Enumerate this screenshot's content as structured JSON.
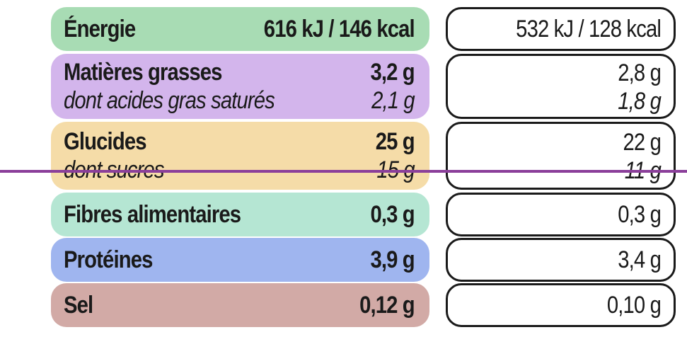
{
  "colors": {
    "energy": "#a8dcb4",
    "fat": "#d3b5ec",
    "carbs": "#f5dca8",
    "fibre": "#b5e6d3",
    "protein": "#9fb5ef",
    "salt": "#d2aaa6",
    "rule": "#8b3f9a"
  },
  "rows": [
    {
      "label": "Énergie",
      "value": "616 kJ / 146 kcal",
      "right": "532 kJ / 128 kcal"
    },
    {
      "label": "Matières grasses",
      "value": "3,2 g",
      "right": "2,8 g",
      "sub_label": "dont acides gras saturés",
      "sub_value": "2,1 g",
      "sub_right": "1,8 g"
    },
    {
      "label": "Glucides",
      "value": "25 g",
      "right": "22 g",
      "sub_label": "dont sucres",
      "sub_value": "15 g",
      "sub_right": "11 g"
    },
    {
      "label": "Fibres alimentaires",
      "value": "0,3 g",
      "right": "0,3 g"
    },
    {
      "label": "Protéines",
      "value": "3,9 g",
      "right": "3,4 g"
    },
    {
      "label": "Sel",
      "value": "0,12 g",
      "right": "0,10 g"
    }
  ]
}
